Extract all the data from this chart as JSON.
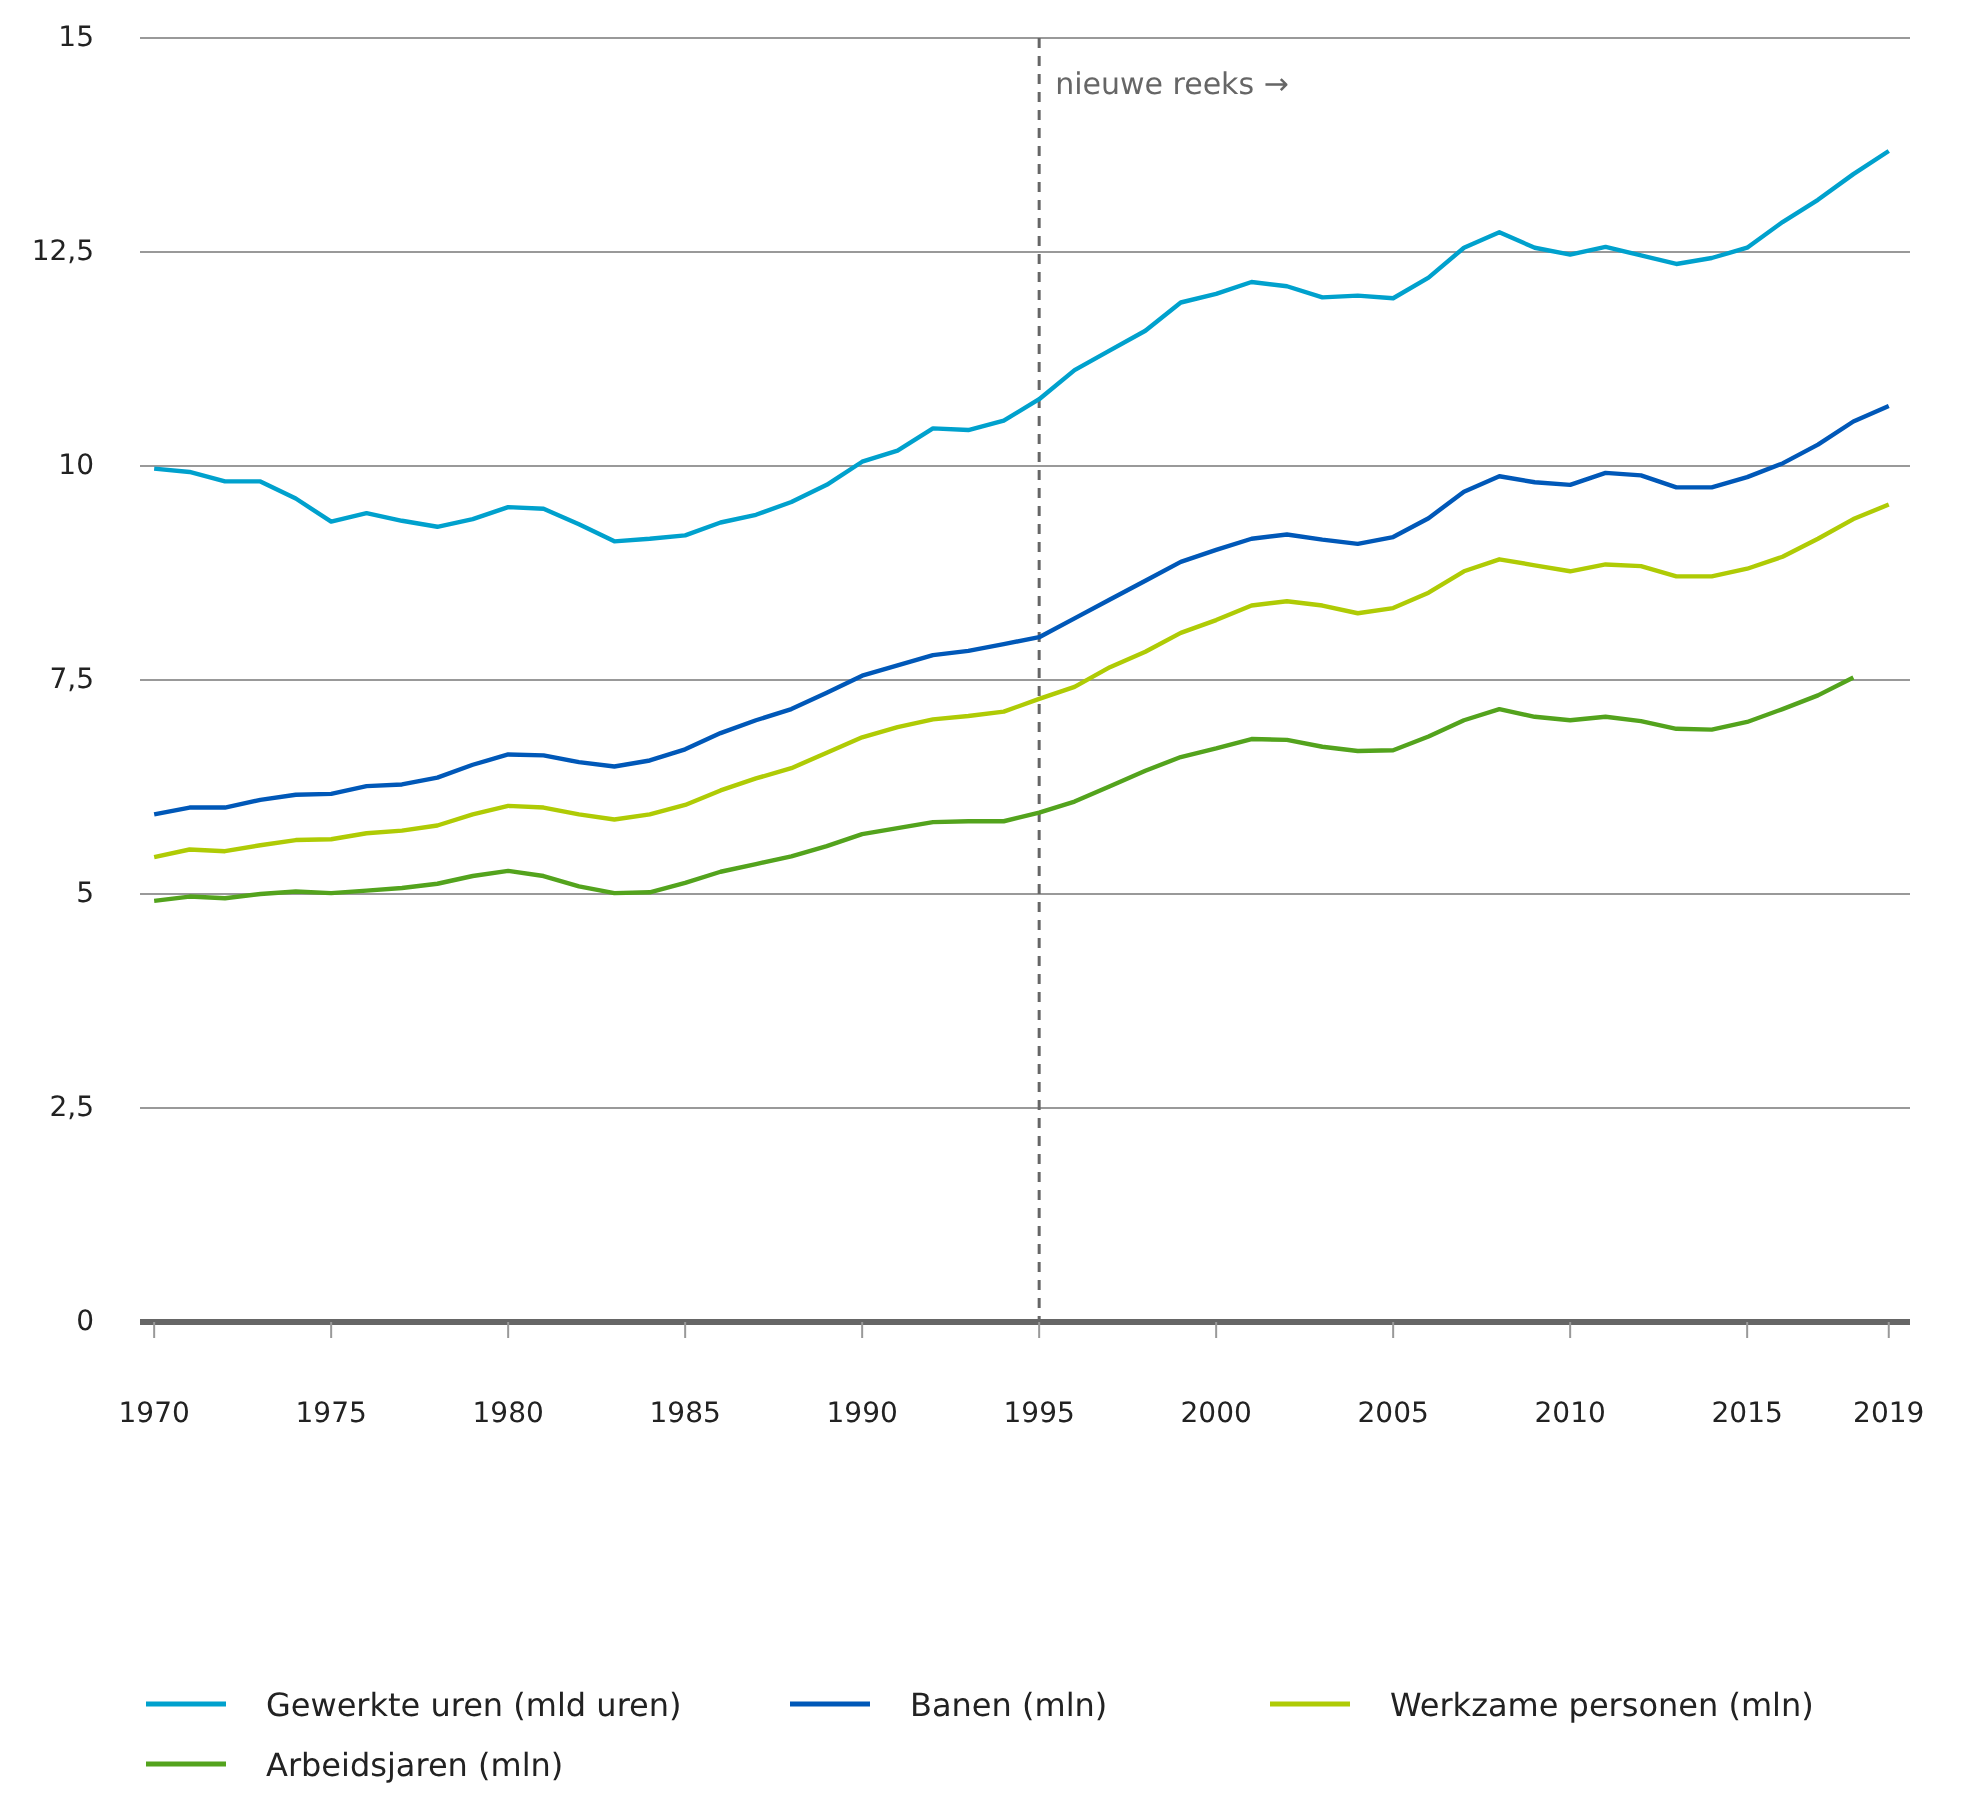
{
  "chart_data": {
    "type": "line",
    "x": [
      1970,
      1971,
      1972,
      1973,
      1974,
      1975,
      1976,
      1977,
      1978,
      1979,
      1980,
      1981,
      1982,
      1983,
      1984,
      1985,
      1986,
      1987,
      1988,
      1989,
      1990,
      1991,
      1992,
      1993,
      1994,
      1995,
      1996,
      1997,
      1998,
      1999,
      2000,
      2001,
      2002,
      2003,
      2004,
      2005,
      2006,
      2007,
      2008,
      2009,
      2010,
      2011,
      2012,
      2013,
      2014,
      2015,
      2016,
      2017,
      2018,
      2019
    ],
    "series": [
      {
        "name": "Gewerkte uren (mld uren)",
        "color": "#00a1cd",
        "values": [
          9.97,
          9.93,
          9.82,
          9.82,
          9.62,
          9.35,
          9.45,
          9.36,
          9.29,
          9.38,
          9.52,
          9.5,
          9.32,
          9.12,
          9.15,
          9.19,
          9.34,
          9.43,
          9.58,
          9.78,
          10.05,
          10.18,
          10.44,
          10.42,
          10.53,
          10.78,
          11.12,
          11.35,
          11.58,
          11.91,
          12.01,
          12.15,
          12.1,
          11.97,
          11.99,
          11.96,
          12.2,
          12.55,
          12.73,
          12.55,
          12.47,
          12.56,
          12.46,
          12.36,
          12.43,
          12.55,
          12.85,
          13.11,
          13.41,
          13.68
        ]
      },
      {
        "name": "Banen (mln)",
        "color": "#0058b8",
        "values": [
          5.93,
          6.01,
          6.01,
          6.1,
          6.16,
          6.17,
          6.26,
          6.28,
          6.36,
          6.51,
          6.63,
          6.62,
          6.54,
          6.49,
          6.56,
          6.69,
          6.88,
          7.03,
          7.16,
          7.35,
          7.55,
          7.67,
          7.79,
          7.84,
          7.92,
          8.0,
          8.22,
          8.44,
          8.66,
          8.88,
          9.02,
          9.15,
          9.2,
          9.14,
          9.09,
          9.17,
          9.39,
          9.7,
          9.88,
          9.81,
          9.78,
          9.92,
          9.89,
          9.75,
          9.75,
          9.87,
          10.03,
          10.25,
          10.52,
          10.7
        ]
      },
      {
        "name": "Werkzame personen (mln)",
        "color": "#afcb05",
        "values": [
          5.43,
          5.52,
          5.5,
          5.57,
          5.63,
          5.64,
          5.71,
          5.74,
          5.8,
          5.93,
          6.03,
          6.01,
          5.93,
          5.87,
          5.93,
          6.04,
          6.21,
          6.35,
          6.47,
          6.65,
          6.83,
          6.95,
          7.04,
          7.08,
          7.13,
          7.28,
          7.42,
          7.65,
          7.83,
          8.05,
          8.2,
          8.37,
          8.42,
          8.37,
          8.28,
          8.34,
          8.52,
          8.77,
          8.91,
          8.84,
          8.77,
          8.85,
          8.83,
          8.71,
          8.71,
          8.8,
          8.94,
          9.15,
          9.38,
          9.55
        ]
      },
      {
        "name": "Arbeidsjaren (mln)",
        "color": "#53a31d",
        "values": [
          4.92,
          4.97,
          4.95,
          5.0,
          5.03,
          5.01,
          5.04,
          5.07,
          5.12,
          5.21,
          5.27,
          5.21,
          5.09,
          5.01,
          5.02,
          5.13,
          5.26,
          5.35,
          5.44,
          5.56,
          5.7,
          5.77,
          5.84,
          5.85,
          5.85,
          5.95,
          6.08,
          6.26,
          6.44,
          6.6,
          6.7,
          6.81,
          6.8,
          6.72,
          6.67,
          6.68,
          6.84,
          7.03,
          7.16,
          7.07,
          7.03,
          7.07,
          7.02,
          6.93,
          6.92,
          7.01,
          7.16,
          7.32,
          7.53,
          null
        ]
      }
    ],
    "xlim": [
      1969.6,
      2019.6
    ],
    "xticks": [
      1970,
      1975,
      1980,
      1985,
      1990,
      1995,
      2000,
      2005,
      2010,
      2015,
      2019
    ],
    "ylim": [
      0,
      15
    ],
    "yticks": [
      0,
      {
        "value": 2.5,
        "label": "2,5"
      },
      5,
      {
        "value": 7.5,
        "label": "7,5"
      },
      10,
      {
        "value": 12.5,
        "label": "12,5"
      },
      15
    ],
    "grid": "y",
    "legend": "bottom",
    "line_style": "solid",
    "ref_lines": [
      {
        "axis": "x",
        "value": 1995,
        "label": "nieuwe reeks →",
        "color": "#666666",
        "line_style": "dashed"
      }
    ]
  }
}
